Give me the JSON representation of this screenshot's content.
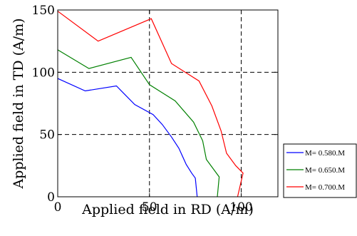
{
  "chart_data": {
    "type": "line",
    "title": "",
    "xlabel": "Applied field in RD (A/m)",
    "ylabel": "Applied field in TD (A/m)",
    "xlim": [
      0,
      120
    ],
    "ylim": [
      0,
      150
    ],
    "x_ticks": [
      0,
      50,
      100
    ],
    "y_ticks": [
      0,
      50,
      100,
      150
    ],
    "grid": "dashed at ticks",
    "legend_position": "bottom-right, outside plot",
    "series": [
      {
        "name": "M= 0.580.M",
        "color": "#0000ff",
        "points": [
          [
            0,
            95
          ],
          [
            15,
            85
          ],
          [
            32,
            89
          ],
          [
            42,
            74
          ],
          [
            52,
            66
          ],
          [
            57,
            58
          ],
          [
            62,
            48
          ],
          [
            66,
            39
          ],
          [
            70,
            26
          ],
          [
            73,
            19
          ],
          [
            75,
            15
          ],
          [
            76,
            0
          ]
        ]
      },
      {
        "name": "M= 0.650.M",
        "color": "#008000",
        "points": [
          [
            0,
            118
          ],
          [
            17,
            103
          ],
          [
            40,
            112
          ],
          [
            50,
            90
          ],
          [
            64,
            77
          ],
          [
            74,
            60
          ],
          [
            79,
            45
          ],
          [
            81,
            30
          ],
          [
            85,
            22
          ],
          [
            88,
            16
          ],
          [
            87,
            0
          ]
        ]
      },
      {
        "name": "M= 0.700.M",
        "color": "#ff0000",
        "points": [
          [
            0,
            149
          ],
          [
            22,
            125
          ],
          [
            51,
            143
          ],
          [
            62,
            107
          ],
          [
            77,
            93
          ],
          [
            84,
            73
          ],
          [
            89,
            53
          ],
          [
            92,
            35
          ],
          [
            97,
            25
          ],
          [
            101,
            19
          ],
          [
            98,
            0
          ]
        ]
      }
    ]
  }
}
